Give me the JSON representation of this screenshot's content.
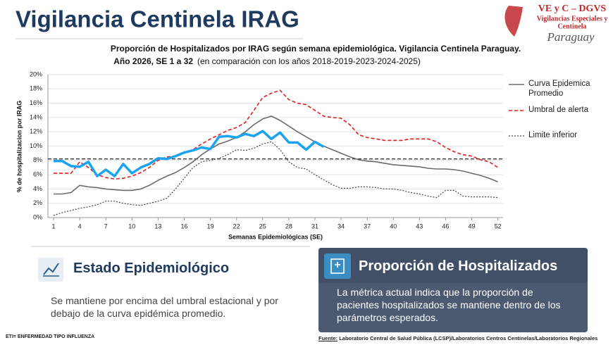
{
  "header": {
    "title": "Vigilancia Centinela IRAG"
  },
  "logo": {
    "line1": "VE y C – DGVS",
    "line2": "Vigilancias Especiales y",
    "line3": "Centinela",
    "line4": "Paraguay"
  },
  "chart_data": {
    "type": "line",
    "title": "Proporción de Hospitalizados por IRAG según semana epidemiológica. Vigilancia Centinela Paraguay.",
    "subtitle": "Año 2026, SE 1 a 32",
    "subtitle_note": "(en comparación con los años 2018-2019-2023-2024-2025)",
    "y_label": "% de hospitalizacion por IRAG",
    "x_label": "Semanas Epidemiológicas (SE)",
    "x": [
      1,
      2,
      3,
      4,
      5,
      6,
      7,
      8,
      9,
      10,
      11,
      12,
      13,
      14,
      15,
      16,
      17,
      18,
      19,
      20,
      21,
      22,
      23,
      24,
      25,
      26,
      27,
      28,
      29,
      30,
      31,
      32,
      33,
      34,
      35,
      36,
      37,
      38,
      39,
      40,
      41,
      42,
      43,
      44,
      45,
      46,
      47,
      48,
      49,
      50,
      51,
      52
    ],
    "xlim": [
      0.35,
      52.6
    ],
    "xticks": [
      1,
      4,
      7,
      10,
      13,
      16,
      19,
      22,
      25,
      28,
      31,
      34,
      37,
      40,
      43,
      46,
      49,
      52
    ],
    "ylim": [
      0,
      20
    ],
    "yticks": [
      {
        "value": 0,
        "label": "0%"
      },
      {
        "value": 2,
        "label": "2%"
      },
      {
        "value": 4,
        "label": "4%"
      },
      {
        "value": 6,
        "label": "6%"
      },
      {
        "value": 8,
        "label": "8%"
      },
      {
        "value": 10,
        "label": "10%"
      },
      {
        "value": 12,
        "label": "12%"
      },
      {
        "value": 14,
        "label": "14%"
      },
      {
        "value": 16,
        "label": "16%"
      },
      {
        "value": 18,
        "label": "18%"
      },
      {
        "value": 20,
        "label": "20%"
      }
    ],
    "grid": true,
    "reference_line": {
      "value": 8.2,
      "color": "#222222",
      "dash": "dashed"
    },
    "series": [
      {
        "name": "Curva Epidemica Promedio",
        "color": "#6b6b6b",
        "dash": "solid",
        "width": 1.6,
        "values": [
          3.3,
          3.3,
          3.5,
          4.5,
          4.3,
          4.2,
          4.0,
          3.9,
          3.8,
          3.8,
          4.0,
          4.5,
          5.2,
          5.8,
          6.3,
          7.0,
          7.8,
          8.8,
          9.6,
          10.3,
          10.7,
          11.2,
          12.0,
          13.0,
          13.8,
          14.2,
          13.6,
          12.8,
          12.0,
          11.3,
          10.6,
          10.0,
          9.5,
          9.0,
          8.5,
          8.1,
          7.9,
          7.8,
          7.6,
          7.4,
          7.3,
          7.2,
          7.1,
          6.9,
          6.8,
          6.8,
          6.7,
          6.5,
          6.2,
          5.9,
          5.5,
          5.0
        ]
      },
      {
        "name": "Umbral de alerta",
        "color": "#e02020",
        "dash": "dashed",
        "width": 1.6,
        "values": [
          6.2,
          6.2,
          6.2,
          7.8,
          7.0,
          6.0,
          5.6,
          5.4,
          5.5,
          5.8,
          6.3,
          7.0,
          8.0,
          8.5,
          8.5,
          9.0,
          9.5,
          10.3,
          11.0,
          11.6,
          12.2,
          12.6,
          13.3,
          15.0,
          16.8,
          17.4,
          17.8,
          16.5,
          16.0,
          15.8,
          15.0,
          14.2,
          14.0,
          13.9,
          13.0,
          11.6,
          11.2,
          11.0,
          10.8,
          10.8,
          10.8,
          11.0,
          11.0,
          11.0,
          10.6,
          9.8,
          9.2,
          8.8,
          8.6,
          8.1,
          7.8,
          7.0
        ]
      },
      {
        "name": "Limite inferior",
        "color": "#444444",
        "dash": "dotted",
        "width": 1.2,
        "values": [
          0.3,
          0.7,
          1.0,
          1.3,
          1.5,
          1.8,
          2.3,
          2.3,
          2.0,
          1.8,
          1.7,
          2.0,
          2.3,
          2.7,
          4.0,
          5.5,
          7.0,
          7.8,
          8.0,
          8.3,
          8.8,
          9.5,
          9.4,
          9.7,
          10.3,
          10.6,
          9.5,
          7.8,
          7.0,
          6.8,
          6.0,
          5.3,
          4.6,
          4.1,
          4.1,
          4.3,
          4.3,
          4.2,
          4.0,
          4.0,
          3.8,
          3.5,
          3.3,
          3.0,
          2.8,
          3.8,
          3.8,
          3.0,
          2.9,
          2.9,
          2.9,
          2.8
        ]
      },
      {
        "color": "#1aa3f0",
        "dash": "solid",
        "width": 3.5,
        "values": [
          7.9,
          7.9,
          7.2,
          7.1,
          7.8,
          5.8,
          6.7,
          5.8,
          7.5,
          6.2,
          7.0,
          7.5,
          8.3,
          8.2,
          8.6,
          9.1,
          9.4,
          9.8,
          9.6,
          11.3,
          11.4,
          11.2,
          11.7,
          11.4,
          12.1,
          11.0,
          11.9,
          10.5,
          10.5,
          9.5,
          10.6,
          9.9,
          null,
          null,
          null,
          null,
          null,
          null,
          null,
          null,
          null,
          null,
          null,
          null,
          null,
          null,
          null,
          null,
          null,
          null,
          null,
          null
        ]
      }
    ]
  },
  "panels": [
    {
      "title": "Estado Epidemiológico",
      "text": "Se mantiene por encima del umbral estacional y por debajo de la curva epidémica promedio."
    },
    {
      "title": "Proporción de Hospitalizados",
      "text": "La métrica actual indica que la proporción de pacientes hospitalizados se mantiene dentro de los parámetros esperados."
    }
  ],
  "footer": {
    "note": "ETI= ENFERMEDAD TIPO INFLUENZA",
    "source_label": "Fuente:",
    "source": "Laboratorio Central de Salud Pública (LCSP)/Laboratorios Centros Centinelas/Laboratorios Regionales"
  }
}
